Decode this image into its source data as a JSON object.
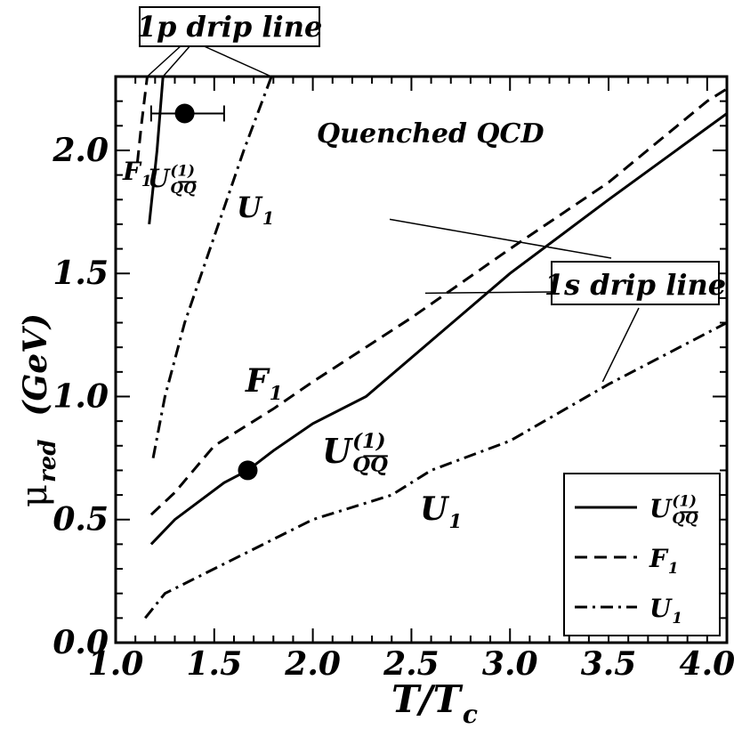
{
  "chart_data": {
    "type": "line",
    "title": "",
    "xlabel": {
      "main": "T/T",
      "sub": "c"
    },
    "ylabel": {
      "mu": "μ",
      "sub": "red",
      "unit": "(GeV)"
    },
    "xlim": [
      1.0,
      4.1
    ],
    "ylim": [
      0.0,
      2.3
    ],
    "xticks": [
      {
        "v": 1.0,
        "label": "1.0"
      },
      {
        "v": 1.5,
        "label": "1.5"
      },
      {
        "v": 2.0,
        "label": "2.0"
      },
      {
        "v": 2.5,
        "label": "2.5"
      },
      {
        "v": 3.0,
        "label": "3.0"
      },
      {
        "v": 3.5,
        "label": "3.5"
      },
      {
        "v": 4.0,
        "label": "4.0"
      }
    ],
    "yticks": [
      {
        "v": 0.0,
        "label": "0.0"
      },
      {
        "v": 0.5,
        "label": "0.5"
      },
      {
        "v": 1.0,
        "label": "1.0"
      },
      {
        "v": 1.5,
        "label": "1.5"
      },
      {
        "v": 2.0,
        "label": "2.0"
      }
    ],
    "series": [
      {
        "key": "uqq",
        "style": "solid",
        "group": "1s",
        "points": [
          [
            1.18,
            0.4
          ],
          [
            1.3,
            0.5
          ],
          [
            1.55,
            0.65
          ],
          [
            1.67,
            0.7
          ],
          [
            1.8,
            0.78
          ],
          [
            2.0,
            0.89
          ],
          [
            2.27,
            1.0
          ],
          [
            3.0,
            1.5
          ],
          [
            3.5,
            1.8
          ],
          [
            4.1,
            2.15
          ]
        ]
      },
      {
        "key": "f1",
        "style": "dashed",
        "group": "1s",
        "points": [
          [
            1.18,
            0.52
          ],
          [
            1.3,
            0.61
          ],
          [
            1.5,
            0.8
          ],
          [
            1.8,
            0.95
          ],
          [
            2.0,
            1.06
          ],
          [
            2.5,
            1.32
          ],
          [
            3.0,
            1.6
          ],
          [
            3.5,
            1.87
          ],
          [
            4.0,
            2.2
          ],
          [
            4.1,
            2.25
          ]
        ]
      },
      {
        "key": "u1",
        "style": "dashdot",
        "group": "1s",
        "points": [
          [
            1.15,
            0.1
          ],
          [
            1.25,
            0.2
          ],
          [
            1.5,
            0.3
          ],
          [
            2.0,
            0.5
          ],
          [
            2.4,
            0.6
          ],
          [
            2.6,
            0.7
          ],
          [
            3.0,
            0.82
          ],
          [
            3.5,
            1.05
          ],
          [
            4.1,
            1.3
          ]
        ]
      },
      {
        "key": "uqq",
        "style": "solid",
        "group": "1p",
        "points": [
          [
            1.17,
            1.7
          ],
          [
            1.21,
            2.0
          ],
          [
            1.24,
            2.3
          ]
        ]
      },
      {
        "key": "f1",
        "style": "dashed",
        "group": "1p",
        "points": [
          [
            1.11,
            1.95
          ],
          [
            1.13,
            2.1
          ],
          [
            1.16,
            2.3
          ]
        ]
      },
      {
        "key": "u1",
        "style": "dashdot",
        "group": "1p",
        "points": [
          [
            1.19,
            0.75
          ],
          [
            1.25,
            1.0
          ],
          [
            1.35,
            1.3
          ],
          [
            1.5,
            1.65
          ],
          [
            1.65,
            2.0
          ],
          [
            1.79,
            2.3
          ]
        ]
      }
    ],
    "points": [
      {
        "x": 1.35,
        "y": 2.15,
        "xerr": [
          1.18,
          1.55
        ]
      },
      {
        "x": 1.67,
        "y": 0.7
      }
    ],
    "annotations": {
      "title_inset": "Quenched QCD",
      "box_1p": "1p drip line",
      "box_1s": "1s drip line",
      "F": "F",
      "F_sub": "1",
      "U": "U",
      "U_sub": "1",
      "UQQ_main": "U",
      "UQQ_sup": "(1)",
      "UQQ_sub": "QQ"
    },
    "legend": {
      "position": "bottom-right",
      "entries": [
        {
          "key": "uqq",
          "style": "solid",
          "label_main": "U",
          "label_sup": "(1)",
          "label_sub": "QQ"
        },
        {
          "key": "f1",
          "style": "dashed",
          "label_main": "F",
          "label_sub": "1"
        },
        {
          "key": "u1",
          "style": "dashdot",
          "label_main": "U",
          "label_sub": "1"
        }
      ]
    }
  }
}
